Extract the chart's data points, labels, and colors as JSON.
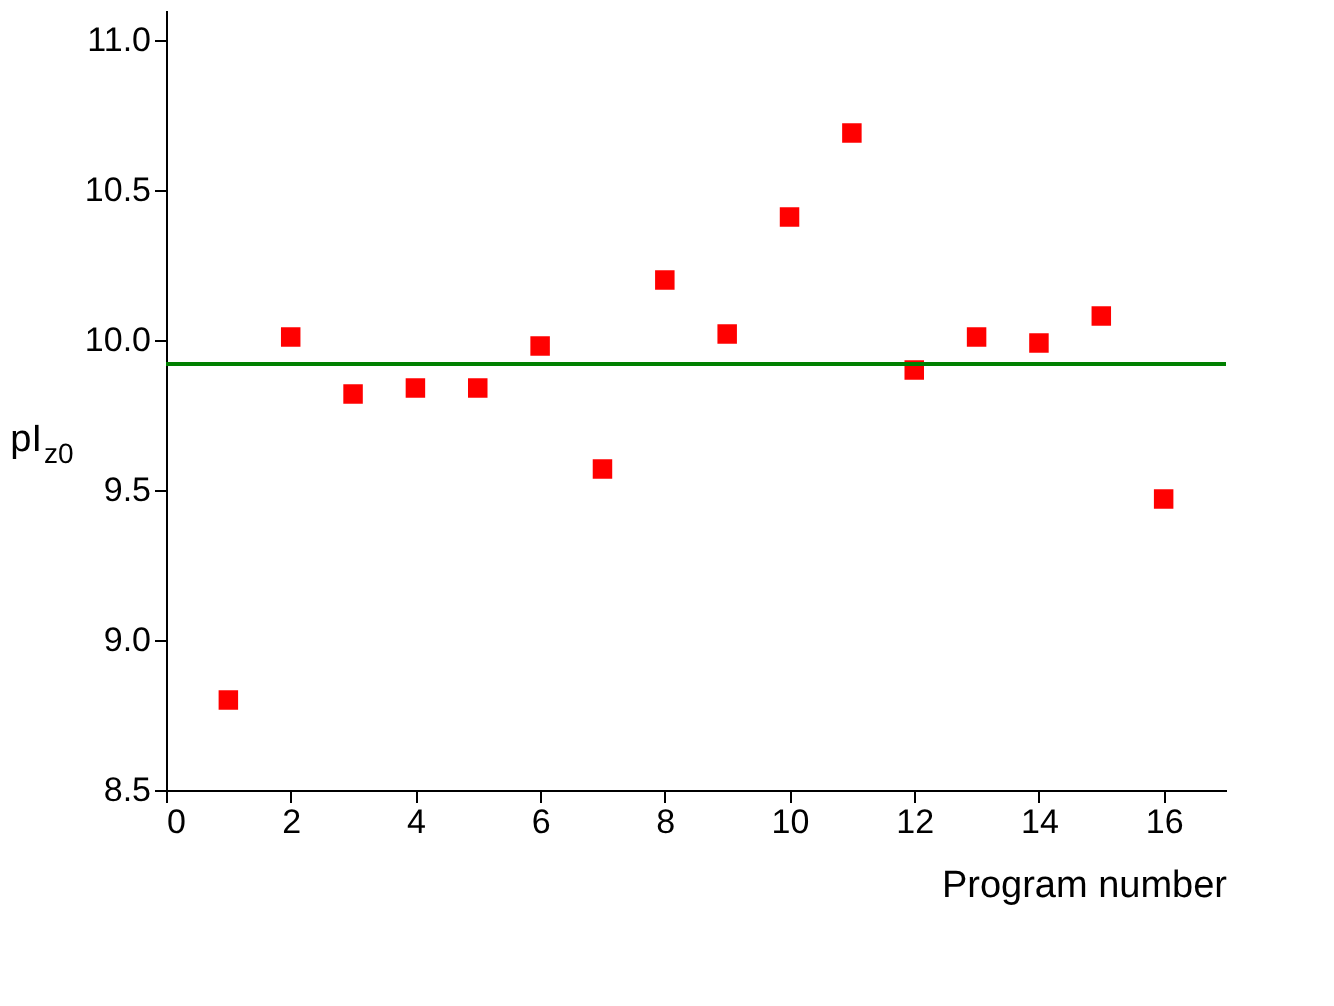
{
  "chart_data": {
    "type": "scatter",
    "xlabel": "Program number",
    "ylabel": "pI$_{z0}$",
    "x": [
      1,
      2,
      3,
      4,
      5,
      6,
      7,
      8,
      9,
      10,
      11,
      12,
      13,
      14,
      15,
      16
    ],
    "series": [
      {
        "color": "#ff0000",
        "values": [
          8.8,
          10.01,
          9.82,
          9.84,
          9.84,
          9.98,
          9.57,
          10.2,
          10.02,
          10.41,
          10.69,
          9.9,
          10.01,
          9.99,
          10.08,
          9.47
        ]
      }
    ],
    "xlim": [
      0,
      17
    ],
    "xticks": [
      0,
      2,
      4,
      6,
      8,
      10,
      12,
      14,
      16
    ],
    "ylim": [
      8.5,
      11.1
    ],
    "yticks": [
      {
        "value": 8.5,
        "label": "8.5"
      },
      {
        "value": 9.0,
        "label": "9.0"
      },
      {
        "value": 9.5,
        "label": "9.5"
      },
      {
        "value": 10.0,
        "label": "10.0"
      },
      {
        "value": 10.5,
        "label": "10.5"
      },
      {
        "value": 11.0,
        "label": "11.0"
      }
    ],
    "ref_lines": [
      {
        "axis": "y",
        "value": 9.92,
        "color": "#008000"
      }
    ],
    "marker": "square",
    "grid": false
  }
}
